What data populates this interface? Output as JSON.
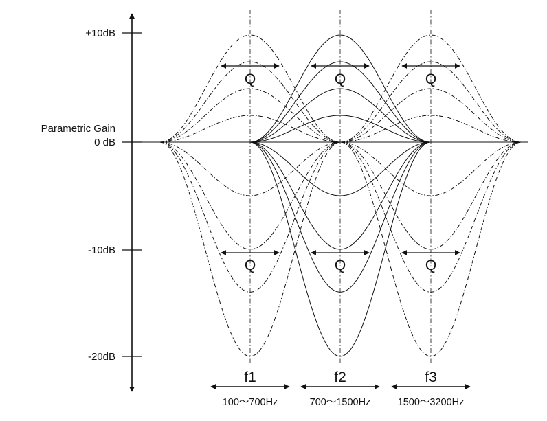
{
  "y_axis": {
    "name": "Parametric Gain",
    "ticks": [
      {
        "value": 10,
        "label": "+10dB"
      },
      {
        "value": 0,
        "label": "0 dB"
      },
      {
        "value": -10,
        "label": "-10dB"
      },
      {
        "value": -20,
        "label": "-20dB"
      }
    ],
    "range_db": [
      -20,
      10
    ]
  },
  "bands": [
    {
      "name": "f1",
      "range": "100～700Hz",
      "q_label": "Q",
      "gain_levels_db": [
        10,
        7.5,
        5,
        2.5,
        -5,
        -10,
        -14,
        -20
      ]
    },
    {
      "name": "f2",
      "range": "700～1500Hz",
      "q_label": "Q",
      "gain_levels_db": [
        10,
        7.5,
        5,
        2.5,
        -5,
        -10,
        -14,
        -20
      ]
    },
    {
      "name": "f3",
      "range": "1500～3200Hz",
      "q_label": "Q",
      "gain_levels_db": [
        10,
        7.5,
        5,
        2.5,
        -5,
        -10,
        -14,
        -20
      ]
    }
  ],
  "colors": {
    "line": "#111111",
    "background": "#ffffff"
  }
}
